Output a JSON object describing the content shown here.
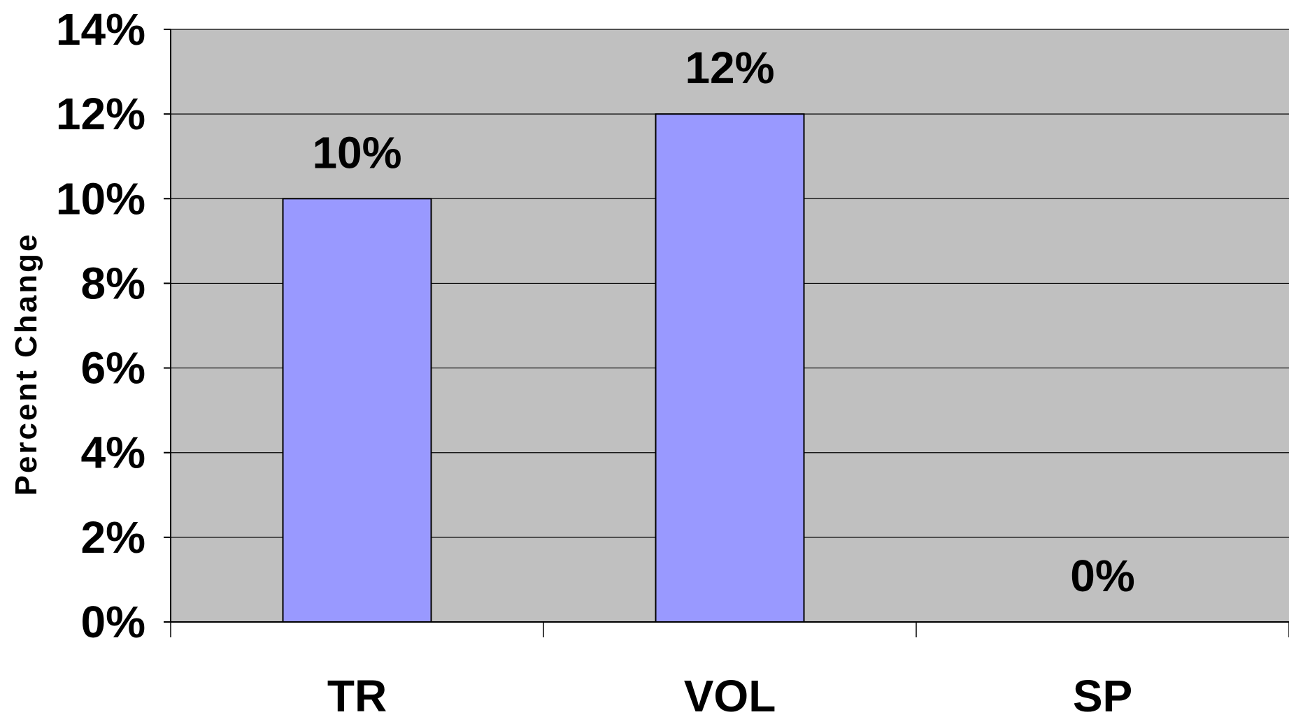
{
  "chart_data": {
    "type": "bar",
    "categories": [
      "TR",
      "VOL",
      "SP"
    ],
    "values": [
      10,
      12,
      0
    ],
    "data_labels": [
      "10%",
      "12%",
      "0%"
    ],
    "title": "",
    "xlabel": "",
    "ylabel": "Percent Change",
    "ylim": [
      0,
      14
    ],
    "y_ticks": [
      0,
      2,
      4,
      6,
      8,
      10,
      12,
      14
    ],
    "y_tick_labels": [
      "0%",
      "2%",
      "4%",
      "6%",
      "8%",
      "10%",
      "12%",
      "14%"
    ],
    "grid": true,
    "legend": "none",
    "colors": {
      "bar_fill": "#9999FF",
      "bar_stroke": "#000000",
      "plot_background": "#C0C0C0",
      "gridline": "#000000"
    }
  }
}
